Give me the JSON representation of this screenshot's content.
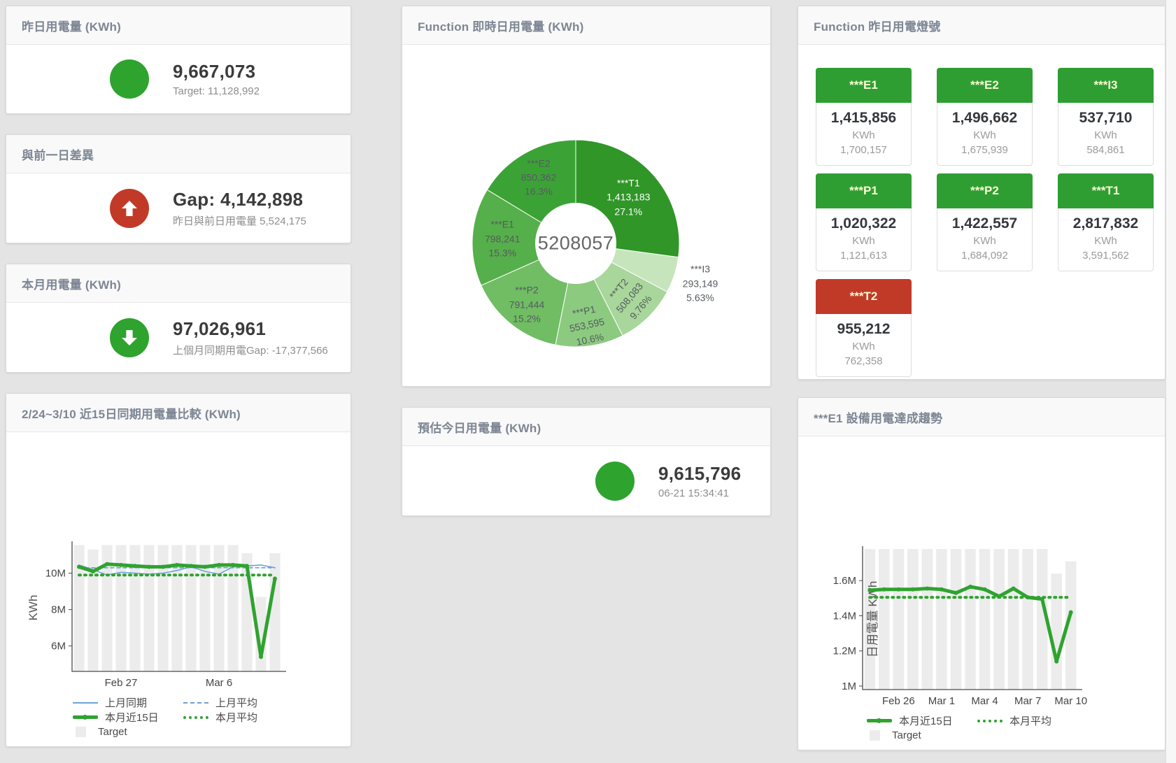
{
  "colors": {
    "green_accent": "#2ea32e",
    "tile_green": "#2e9e33",
    "status_red": "#c13a28",
    "blue_line": "#6ca2d6",
    "green_line": "#2fa32f",
    "target_bar": "#ececec"
  },
  "panels": {
    "yesterday": {
      "title": "昨日用電量 (KWh)",
      "value": "9,667,073",
      "sub": "Target: 11,128,992"
    },
    "day_gap": {
      "title": "與前一日差異",
      "value": "Gap: 4,142,898",
      "sub": "昨日與前日用電量 5,524,175"
    },
    "month": {
      "title": "本月用電量 (KWh)",
      "value": "97,026,961",
      "sub": "上個月同期用電Gap: -17,377,566"
    },
    "today_estimate": {
      "title": "預估今日用電量 (KWh)",
      "value": "9,615,796",
      "sub": "06-21 15:34:41"
    },
    "realtime_donut": {
      "title": "Function 即時日用電量 (KWh)"
    },
    "lights": {
      "title": "Function 昨日用電燈號",
      "tiles": [
        {
          "label": "***E1",
          "value": "1,415,856",
          "unit": "KWh",
          "sub": "1,700,157",
          "status": "green"
        },
        {
          "label": "***E2",
          "value": "1,496,662",
          "unit": "KWh",
          "sub": "1,675,939",
          "status": "green"
        },
        {
          "label": "***I3",
          "value": "537,710",
          "unit": "KWh",
          "sub": "584,861",
          "status": "green"
        },
        {
          "label": "***P1",
          "value": "1,020,322",
          "unit": "KWh",
          "sub": "1,121,613",
          "status": "green"
        },
        {
          "label": "***P2",
          "value": "1,422,557",
          "unit": "KWh",
          "sub": "1,684,092",
          "status": "green"
        },
        {
          "label": "***T1",
          "value": "2,817,832",
          "unit": "KWh",
          "sub": "3,591,562",
          "status": "green"
        },
        {
          "label": "***T2",
          "value": "955,212",
          "unit": "KWh",
          "sub": "762,358",
          "status": "red"
        }
      ]
    },
    "compare": {
      "title": "2/24~3/10 近15日同期用電量比較 (KWh)"
    },
    "e1_trend": {
      "title": "***E1 設備用電達成趨勢"
    }
  },
  "chart_data": [
    {
      "id": "realtime_donut",
      "type": "pie",
      "title": "Function 即時日用電量 (KWh)",
      "center_total": "5208057",
      "slices": [
        {
          "name": "***T1",
          "value": 1413183,
          "pct": "27.1%",
          "color": "#2f9627"
        },
        {
          "name": "***I3",
          "value": 293149,
          "pct": "5.63%",
          "color": "#c7e5bc"
        },
        {
          "name": "***T2",
          "value": 508083,
          "pct": "9.76%",
          "color": "#a8d69b"
        },
        {
          "name": "***P1",
          "value": 553595,
          "pct": "10.6%",
          "color": "#8cca80"
        },
        {
          "name": "***P2",
          "value": 791444,
          "pct": "15.2%",
          "color": "#70bd64"
        },
        {
          "name": "***E1",
          "value": 798241,
          "pct": "15.3%",
          "color": "#55af4a"
        },
        {
          "name": "***E2",
          "value": 850362,
          "pct": "16.3%",
          "color": "#3ba336"
        }
      ]
    },
    {
      "id": "compare",
      "type": "line",
      "title": "2/24~3/10 近15日同期用電量比較 (KWh)",
      "ylabel": "KWh",
      "unit": "M",
      "ylim": [
        4.6,
        11.6
      ],
      "yticks": [
        {
          "v": 6,
          "label": "6M"
        },
        {
          "v": 8,
          "label": "8M"
        },
        {
          "v": 10,
          "label": "10M"
        }
      ],
      "n_points": 15,
      "xticks": [
        {
          "i": 3,
          "label": "Feb 27"
        },
        {
          "i": 10,
          "label": "Mar 6"
        }
      ],
      "target_bars": [
        11.55,
        11.3,
        11.55,
        11.55,
        11.55,
        11.55,
        11.55,
        11.55,
        11.55,
        11.55,
        11.55,
        11.55,
        11.1,
        8.7,
        11.1
      ],
      "series": [
        {
          "name": "上月同期",
          "style": "blue-line",
          "values": [
            10.45,
            10.2,
            9.9,
            10.05,
            10.0,
            9.95,
            10.0,
            10.15,
            10.35,
            10.1,
            9.95,
            10.35,
            10.4,
            10.45,
            10.3
          ]
        },
        {
          "name": "上月平均",
          "style": "blue-dash",
          "values": [
            10.3,
            10.3,
            10.3,
            10.3,
            10.3,
            10.3,
            10.3,
            10.3,
            10.3,
            10.3,
            10.3,
            10.3,
            10.3,
            10.3,
            10.3
          ]
        },
        {
          "name": "本月近15日",
          "style": "green-line",
          "values": [
            10.35,
            10.1,
            10.5,
            10.45,
            10.4,
            10.35,
            10.35,
            10.45,
            10.4,
            10.35,
            10.45,
            10.45,
            10.4,
            5.4,
            9.7
          ]
        },
        {
          "name": "本月平均",
          "style": "green-dot",
          "values": [
            9.9,
            9.9,
            9.9,
            9.9,
            9.9,
            9.9,
            9.9,
            9.9,
            9.9,
            9.9,
            9.9,
            9.9,
            9.9,
            9.9,
            9.9
          ]
        }
      ],
      "legend": [
        {
          "label": "上月同期",
          "swatch": "blue-line"
        },
        {
          "label": "上月平均",
          "swatch": "blue-dash"
        },
        {
          "label": "本月近15日",
          "swatch": "green-line"
        },
        {
          "label": "本月平均",
          "swatch": "green-dot"
        },
        {
          "label": "Target",
          "swatch": "gray-box"
        }
      ]
    },
    {
      "id": "e1_trend",
      "type": "line",
      "title": "***E1 設備用電達成趨勢",
      "ylabel": "日用電量 KWh",
      "unit": "M",
      "ylim": [
        0.98,
        1.78
      ],
      "yticks": [
        {
          "v": 1,
          "label": "1M"
        },
        {
          "v": 1.2,
          "label": "1.2M"
        },
        {
          "v": 1.4,
          "label": "1.4M"
        },
        {
          "v": 1.6,
          "label": "1.6M"
        }
      ],
      "n_points": 15,
      "xticks": [
        {
          "i": 2,
          "label": "Feb 26"
        },
        {
          "i": 5,
          "label": "Mar 1"
        },
        {
          "i": 8,
          "label": "Mar 4"
        },
        {
          "i": 11,
          "label": "Mar 7"
        },
        {
          "i": 14,
          "label": "Mar 10"
        }
      ],
      "target_bars": [
        1.78,
        1.78,
        1.78,
        1.78,
        1.78,
        1.78,
        1.78,
        1.78,
        1.78,
        1.78,
        1.78,
        1.78,
        1.78,
        1.64,
        1.71
      ],
      "series": [
        {
          "name": "本月近15日",
          "style": "green-line",
          "values": [
            1.545,
            1.55,
            1.55,
            1.55,
            1.555,
            1.55,
            1.53,
            1.565,
            1.55,
            1.51,
            1.555,
            1.505,
            1.495,
            1.14,
            1.42
          ]
        },
        {
          "name": "本月平均",
          "style": "green-dot",
          "values": [
            1.505,
            1.505,
            1.505,
            1.505,
            1.505,
            1.505,
            1.505,
            1.505,
            1.505,
            1.505,
            1.505,
            1.505,
            1.505,
            1.505,
            1.505
          ]
        }
      ],
      "legend": [
        {
          "label": "本月近15日",
          "swatch": "green-line"
        },
        {
          "label": "本月平均",
          "swatch": "green-dot"
        },
        {
          "label": "Target",
          "swatch": "gray-box"
        }
      ]
    }
  ]
}
